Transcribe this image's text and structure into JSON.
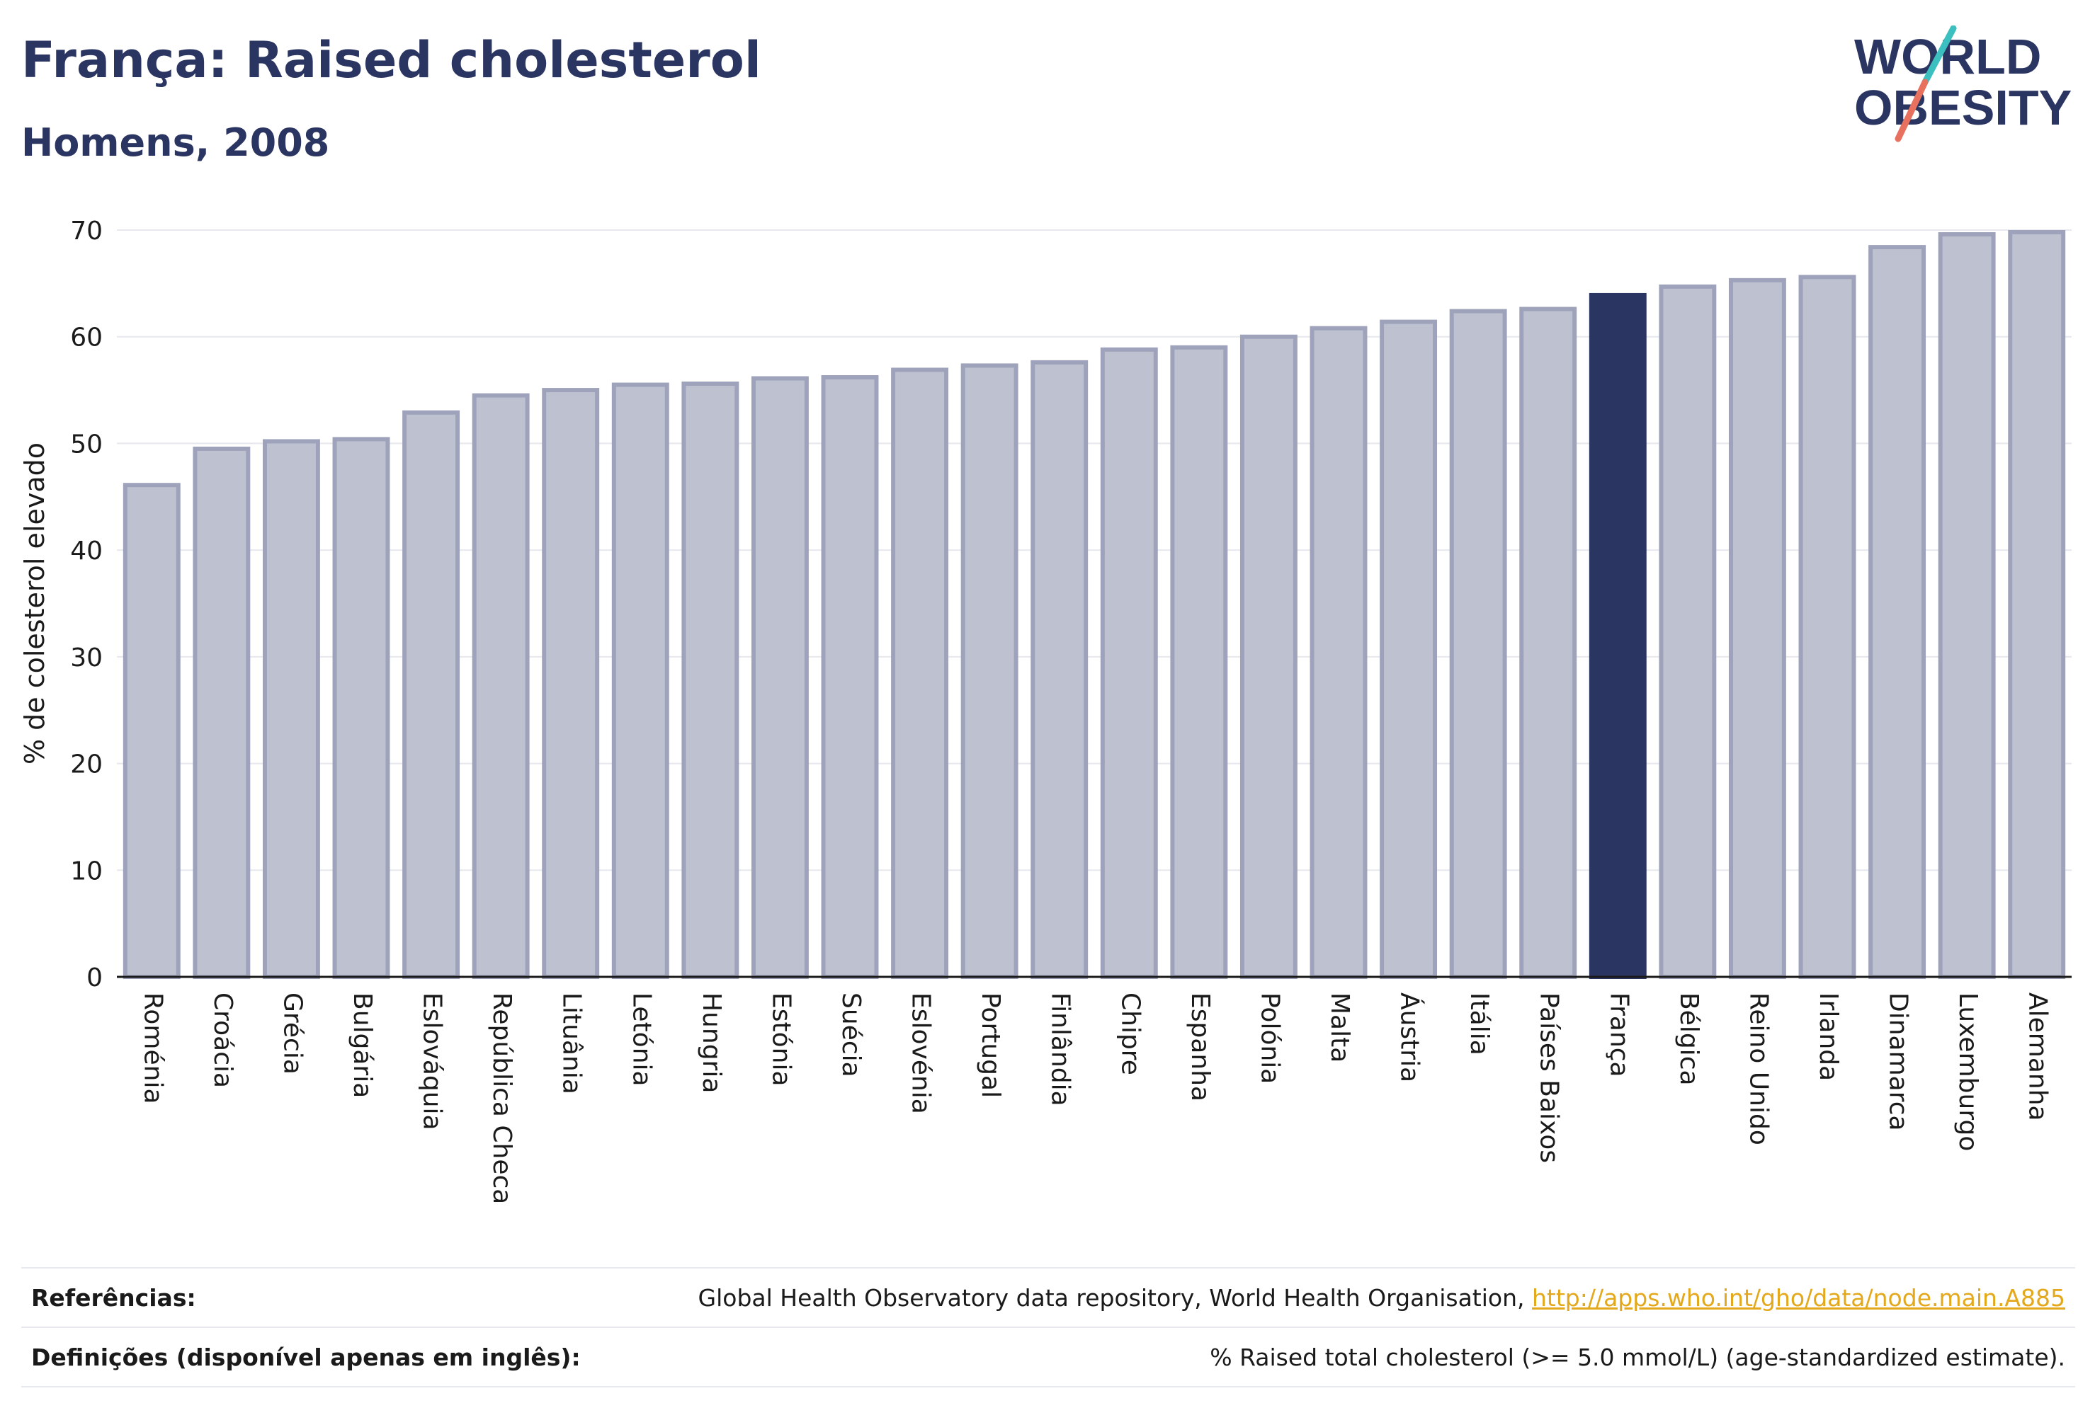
{
  "header": {
    "title": "França: Raised cholesterol",
    "subtitle": "Homens, 2008"
  },
  "logo": {
    "line1": "WORLD",
    "line2": "OBESITY"
  },
  "colors": {
    "bar": "#bec1cf",
    "bar_border": "#9ea3bb",
    "highlight": "#2b3561",
    "text_dark": "#2b3561",
    "link": "#e3a81b"
  },
  "chart_data": {
    "type": "bar",
    "ylabel": "% de colesterol elevado",
    "ylim": [
      0,
      70
    ],
    "yticks": [
      0,
      10,
      20,
      30,
      40,
      50,
      60,
      70
    ],
    "grid": true,
    "highlight": "França",
    "categories": [
      "Roménia",
      "Croácia",
      "Grécia",
      "Bulgária",
      "Eslováquia",
      "República Checa",
      "Lituânia",
      "Letónia",
      "Hungria",
      "Estónia",
      "Suécia",
      "Eslovénia",
      "Portugal",
      "Finlândia",
      "Chipre",
      "Espanha",
      "Polónia",
      "Malta",
      "Áustria",
      "Itália",
      "Países Baixos",
      "França",
      "Bélgica",
      "Reino Unido",
      "Irlanda",
      "Dinamarca",
      "Luxemburgo",
      "Alemanha"
    ],
    "values": [
      46.1,
      49.5,
      50.2,
      50.4,
      52.9,
      54.5,
      55.0,
      55.5,
      55.6,
      56.1,
      56.2,
      56.9,
      57.3,
      57.6,
      58.8,
      59.0,
      60.0,
      60.8,
      61.4,
      62.4,
      62.6,
      63.9,
      64.7,
      65.3,
      65.6,
      68.4,
      69.6,
      69.8
    ]
  },
  "footer": {
    "references_label": "Referências:",
    "references_text": "Global Health Observatory data repository, World Health Organisation, ",
    "references_link": "http://apps.who.int/gho/data/node.main.A885",
    "definitions_label": "Definições (disponível apenas em inglês):",
    "definitions_text": "% Raised total cholesterol (>= 5.0 mmol/L) (age-standardized estimate)."
  }
}
